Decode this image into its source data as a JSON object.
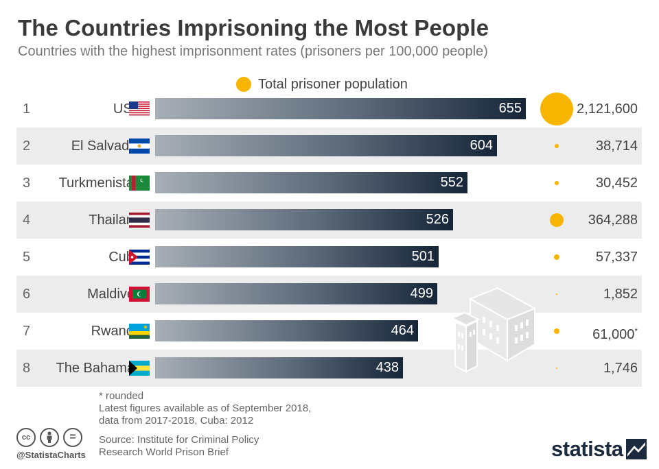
{
  "title": "The Countries Imprisoning the Most People",
  "subtitle": "Countries with the highest imprisonment rates (prisoners per 100,000 people)",
  "legend": {
    "label": "Total prisoner population",
    "color": "#f7b500",
    "icon": "circle-icon"
  },
  "colors": {
    "bar_light": "#a7aeb6",
    "bar_dark": "#162638",
    "bubble": "#f7b500",
    "row_shade": "#ececec"
  },
  "chart_data": {
    "type": "bar",
    "orientation": "horizontal",
    "categories": [
      "USA",
      "El Salvador",
      "Turkmenistan",
      "Thailand",
      "Cuba",
      "Maldives",
      "Rwanda",
      "The Bahamas"
    ],
    "ranks": [
      "1",
      "2",
      "3",
      "4",
      "5",
      "6",
      "7",
      "8"
    ],
    "values": [
      655,
      604,
      552,
      526,
      501,
      499,
      464,
      438
    ],
    "value_labels": [
      "655",
      "604",
      "552",
      "526",
      "501",
      "499",
      "464",
      "438"
    ],
    "bubble_values": [
      2121600,
      38714,
      30452,
      364288,
      57337,
      1852,
      61000,
      1746
    ],
    "bubble_labels": [
      "2,121,600",
      "38,714",
      "30,452",
      "364,288",
      "57,337",
      "1,852",
      "61,000",
      "1,746"
    ],
    "bubble_label_notes": [
      "",
      "",
      "",
      "",
      "",
      "",
      "*",
      ""
    ],
    "flags": [
      "usa-flag-icon",
      "el-salvador-flag-icon",
      "turkmenistan-flag-icon",
      "thailand-flag-icon",
      "cuba-flag-icon",
      "maldives-flag-icon",
      "rwanda-flag-icon",
      "bahamas-flag-icon"
    ],
    "xlim": [
      0,
      700
    ],
    "grid": false
  },
  "notes": [
    "* rounded",
    "Latest figures available as of September 2018,",
    "data from 2017-2018, Cuba: 2012"
  ],
  "source": [
    "Source: Institute for Criminal Policy",
    "Research World Prison Brief"
  ],
  "footer": {
    "handle": "@StatistaCharts",
    "brand": "statista",
    "license_icons": [
      "cc-icon",
      "attribution-icon",
      "no-derivatives-icon"
    ],
    "license_glyphs": [
      "cc",
      "",
      "="
    ]
  }
}
